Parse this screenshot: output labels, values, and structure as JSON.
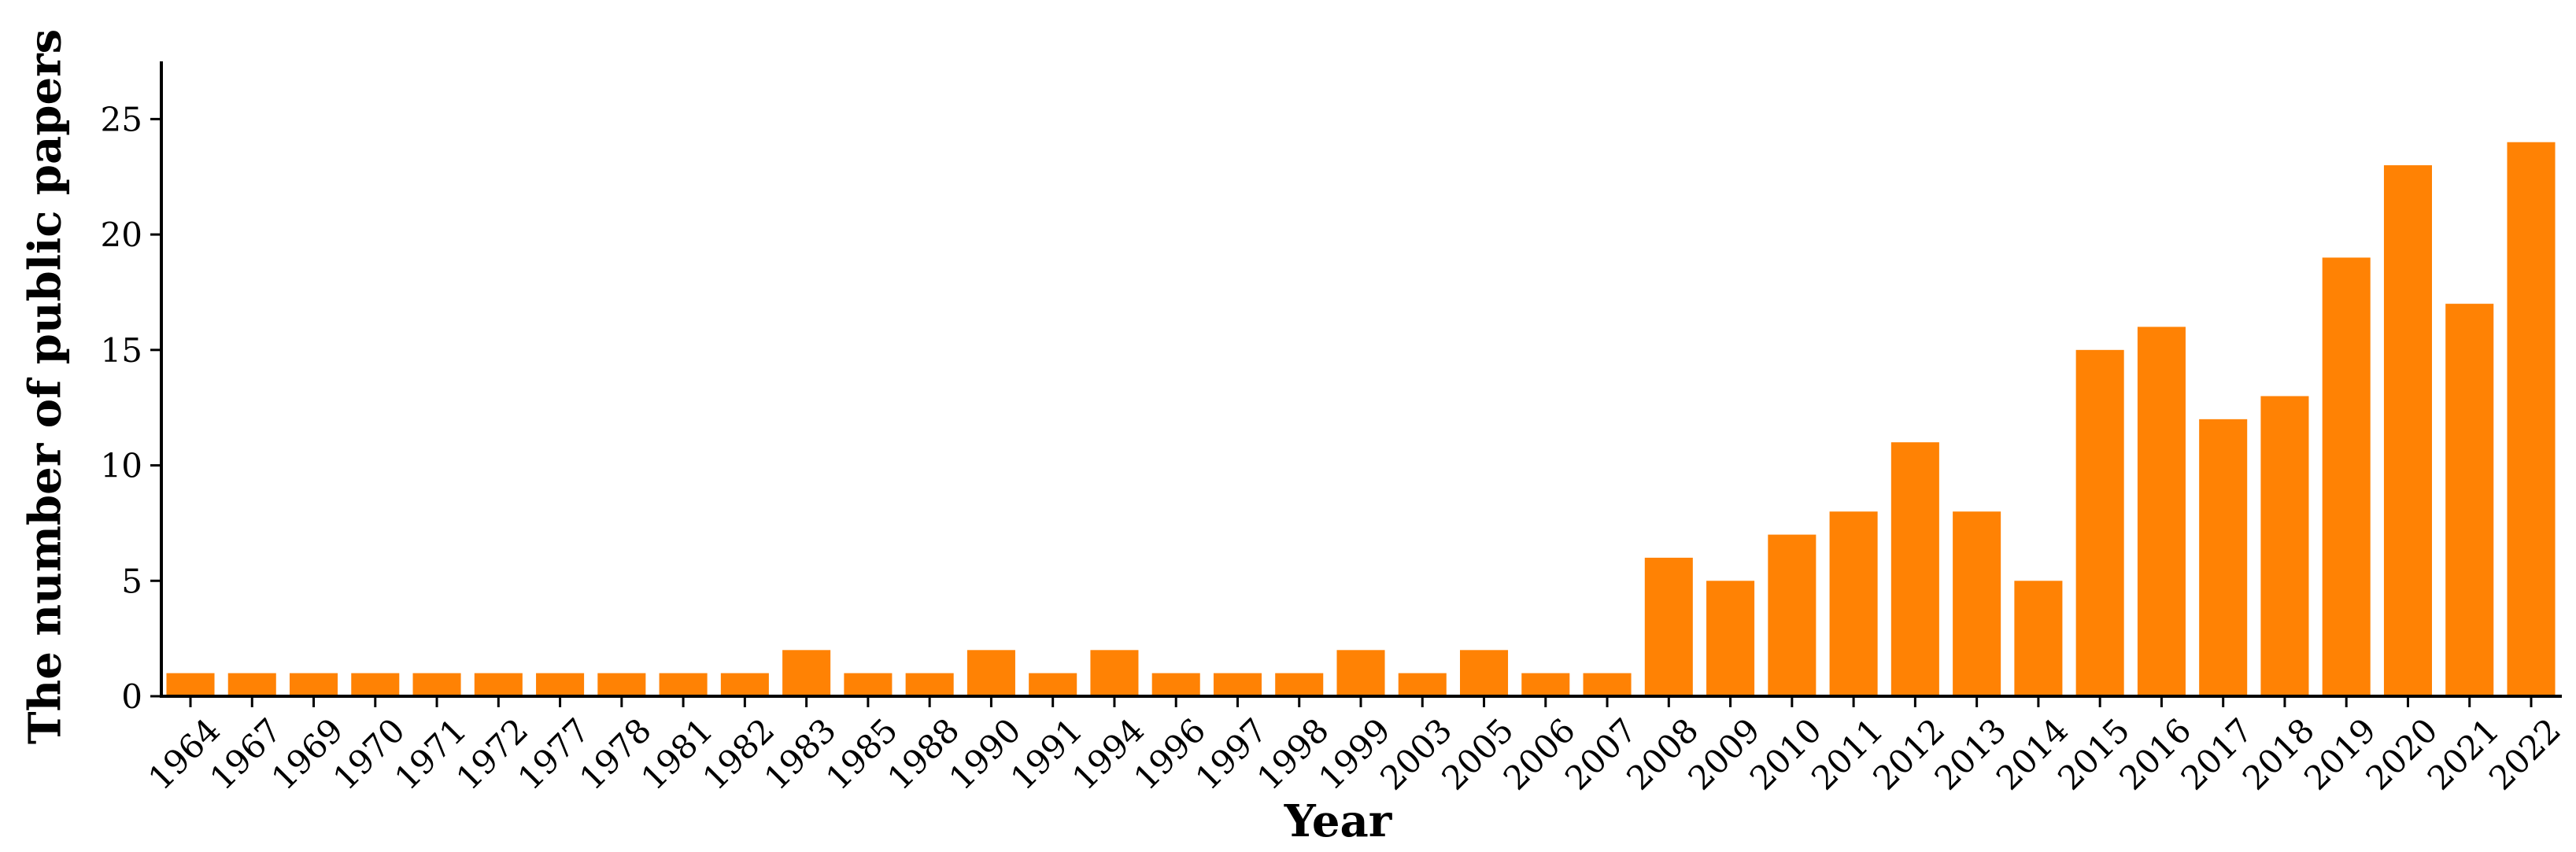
{
  "chart_data": {
    "type": "bar",
    "xlabel": "Year",
    "ylabel": "The number of public papers",
    "categories": [
      "1964",
      "1967",
      "1969",
      "1970",
      "1971",
      "1972",
      "1977",
      "1978",
      "1981",
      "1982",
      "1983",
      "1985",
      "1988",
      "1990",
      "1991",
      "1994",
      "1996",
      "1997",
      "1998",
      "1999",
      "2003",
      "2005",
      "2006",
      "2007",
      "2008",
      "2009",
      "2010",
      "2011",
      "2012",
      "2013",
      "2014",
      "2015",
      "2016",
      "2017",
      "2018",
      "2019",
      "2020",
      "2021",
      "2022"
    ],
    "values": [
      1,
      1,
      1,
      1,
      1,
      1,
      1,
      1,
      1,
      1,
      2,
      1,
      1,
      2,
      1,
      2,
      1,
      1,
      1,
      2,
      1,
      2,
      1,
      1,
      6,
      5,
      7,
      8,
      11,
      8,
      5,
      15,
      16,
      12,
      13,
      19,
      23,
      17,
      24
    ],
    "ylim": [
      0,
      27.5
    ],
    "yticks": [
      0,
      5,
      10,
      15,
      20,
      25
    ],
    "grid": false,
    "bar_color": "#FF8204",
    "axis_color": "#000000"
  }
}
